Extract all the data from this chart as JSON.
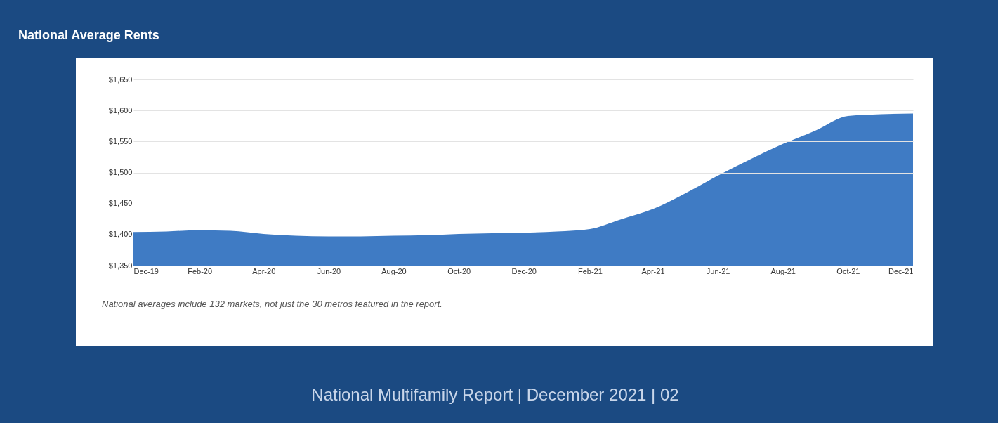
{
  "chart_data": {
    "type": "area",
    "title": "National Average Rents",
    "x": [
      "2019-12",
      "2020-01",
      "2020-02",
      "2020-03",
      "2020-04",
      "2020-05",
      "2020-06",
      "2020-07",
      "2020-08",
      "2020-09",
      "2020-10",
      "2020-11",
      "2020-12",
      "2021-01",
      "2021-02",
      "2021-03",
      "2021-04",
      "2021-05",
      "2021-06",
      "2021-07",
      "2021-08",
      "2021-09",
      "2021-10",
      "2021-11",
      "2021-12"
    ],
    "series": [
      {
        "color": "#3f7bc4",
        "values": [
          1404,
          1405,
          1407,
          1406,
          1401,
          1398,
          1397,
          1397,
          1398,
          1399,
          1401,
          1402,
          1403,
          1405,
          1409,
          1424,
          1441,
          1466,
          1495,
          1521,
          1546,
          1568,
          1591,
          1594,
          1595
        ]
      }
    ],
    "xlim": [
      "2019-12",
      "2021-12"
    ],
    "xticks": [
      {
        "value": "2019-12",
        "label": "Dec-19"
      },
      {
        "value": "2020-02",
        "label": "Feb-20"
      },
      {
        "value": "2020-04",
        "label": "Apr-20"
      },
      {
        "value": "2020-06",
        "label": "Jun-20"
      },
      {
        "value": "2020-08",
        "label": "Aug-20"
      },
      {
        "value": "2020-10",
        "label": "Oct-20"
      },
      {
        "value": "2020-12",
        "label": "Dec-20"
      },
      {
        "value": "2021-02",
        "label": "Feb-21"
      },
      {
        "value": "2021-04",
        "label": "Apr-21"
      },
      {
        "value": "2021-06",
        "label": "Jun-21"
      },
      {
        "value": "2021-08",
        "label": "Aug-21"
      },
      {
        "value": "2021-10",
        "label": "Oct-21"
      },
      {
        "value": "2021-12",
        "label": "Dec-21"
      }
    ],
    "ylim": [
      1350,
      1650
    ],
    "yticks": [
      {
        "value": 1350,
        "label": "$1,350"
      },
      {
        "value": 1400,
        "label": "$1,400"
      },
      {
        "value": 1450,
        "label": "$1,450"
      },
      {
        "value": 1500,
        "label": "$1,500"
      },
      {
        "value": 1550,
        "label": "$1,550"
      },
      {
        "value": 1600,
        "label": "$1,600"
      },
      {
        "value": 1650,
        "label": "$1,650"
      }
    ],
    "grid": "y",
    "annotations": [
      "National averages include 132 markets, not just the 30 metros featured in the report.",
      "National Multifamily Report  |  December 2021  |  02"
    ]
  }
}
